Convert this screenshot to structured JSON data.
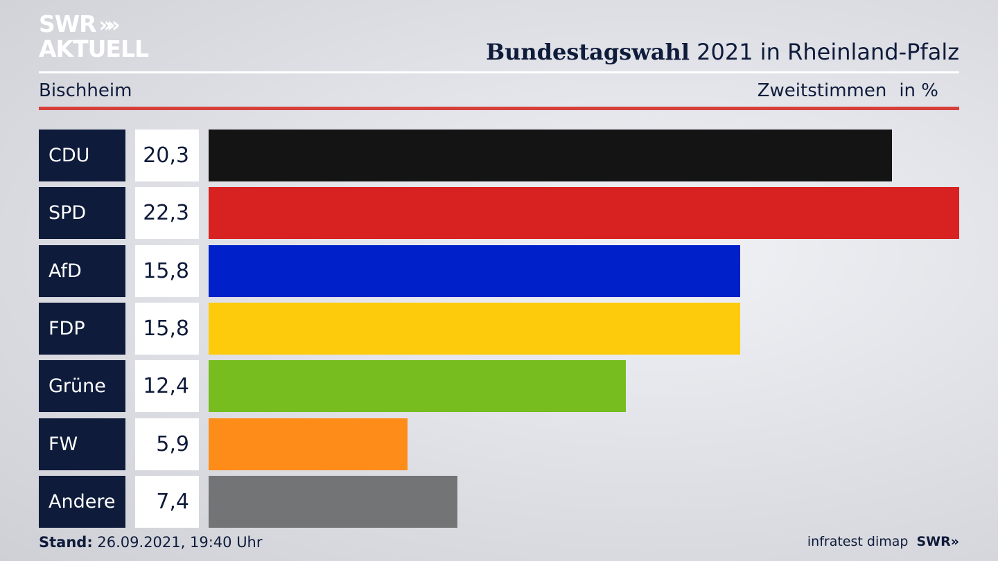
{
  "logo": {
    "line1": "SWR",
    "arrows": "»",
    "line2": "AKTUELL"
  },
  "header": {
    "title_bold": "Bundestagswahl",
    "title_rest": "2021 in Rheinland-Pfalz",
    "region": "Bischheim",
    "measure": "Zweitstimmen",
    "unit": "in %"
  },
  "chart_data": {
    "type": "bar",
    "orientation": "horizontal",
    "categories": [
      "CDU",
      "SPD",
      "AfD",
      "FDP",
      "Grüne",
      "FW",
      "Andere"
    ],
    "values": [
      20.3,
      22.3,
      15.8,
      15.8,
      12.4,
      5.9,
      7.4
    ],
    "value_labels": [
      "20,3",
      "22,3",
      "15,8",
      "15,8",
      "12,4",
      "5,9",
      "7,4"
    ],
    "colors": [
      "#141414",
      "#d82121",
      "#0021c9",
      "#fdcb0b",
      "#77bd1f",
      "#fd8c18",
      "#737476"
    ],
    "xlim": [
      0,
      22.3
    ]
  },
  "footer": {
    "stand_label": "Stand:",
    "stand_value": "26.09.2021, 19:40 Uhr",
    "source": "infratest dimap",
    "brand": "SWR"
  }
}
